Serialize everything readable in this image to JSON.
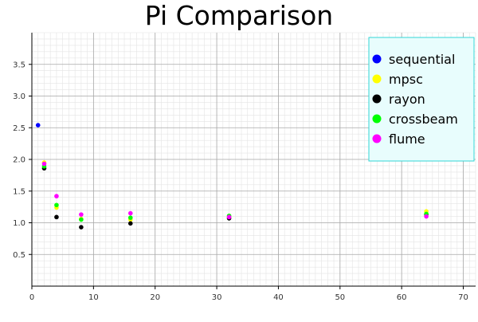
{
  "chart_data": {
    "type": "scatter",
    "title": "Pi Comparison",
    "xlabel": "",
    "ylabel": "",
    "xlim": [
      0,
      72
    ],
    "ylim": [
      0,
      4
    ],
    "x_ticks": [
      0,
      10,
      20,
      30,
      40,
      50,
      60,
      70
    ],
    "y_ticks": [
      0.5,
      1.0,
      1.5,
      2.0,
      2.5,
      3.0,
      3.5
    ],
    "y_tick_labels": [
      "0.5",
      "1.0",
      "1.5",
      "2.0",
      "2.5",
      "3.0",
      "3.5"
    ],
    "grid": true,
    "legend_position": "top-right",
    "legend_background": "#e8fdfd",
    "legend_border": "#33d6d6",
    "series": [
      {
        "name": "sequential",
        "color": "#0000ff",
        "points": [
          [
            1,
            2.54
          ]
        ]
      },
      {
        "name": "mpsc",
        "color": "#ffff00",
        "points": [
          [
            2,
            1.95
          ],
          [
            4,
            1.24
          ],
          [
            8,
            1.06
          ],
          [
            16,
            1.05
          ],
          [
            32,
            1.09
          ],
          [
            64,
            1.18
          ]
        ]
      },
      {
        "name": "rayon",
        "color": "#000000",
        "points": [
          [
            2,
            1.86
          ],
          [
            4,
            1.09
          ],
          [
            8,
            0.93
          ],
          [
            16,
            0.99
          ],
          [
            32,
            1.07
          ],
          [
            64,
            1.13
          ]
        ]
      },
      {
        "name": "crossbeam",
        "color": "#00ff00",
        "points": [
          [
            2,
            1.89
          ],
          [
            4,
            1.28
          ],
          [
            8,
            1.05
          ],
          [
            16,
            1.08
          ],
          [
            32,
            1.11
          ],
          [
            64,
            1.14
          ]
        ]
      },
      {
        "name": "flume",
        "color": "#ff00ff",
        "points": [
          [
            2,
            1.93
          ],
          [
            4,
            1.42
          ],
          [
            8,
            1.13
          ],
          [
            16,
            1.15
          ],
          [
            32,
            1.09
          ],
          [
            64,
            1.1
          ]
        ]
      }
    ]
  }
}
